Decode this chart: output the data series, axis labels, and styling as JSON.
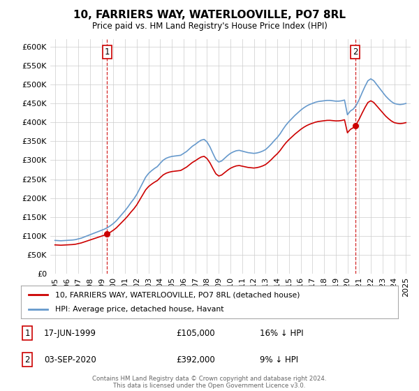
{
  "title": "10, FARRIERS WAY, WATERLOOVILLE, PO7 8RL",
  "subtitle": "Price paid vs. HM Land Registry's House Price Index (HPI)",
  "legend_line1": "10, FARRIERS WAY, WATERLOOVILLE, PO7 8RL (detached house)",
  "legend_line2": "HPI: Average price, detached house, Havant",
  "point1_date": "17-JUN-1999",
  "point1_price": "£105,000",
  "point1_hpi": "16% ↓ HPI",
  "point1_year": 1999.46,
  "point1_value": 105000,
  "point2_date": "03-SEP-2020",
  "point2_price": "£392,000",
  "point2_hpi": "9% ↓ HPI",
  "point2_year": 2020.67,
  "point2_value": 392000,
  "footer": "Contains HM Land Registry data © Crown copyright and database right 2024.\nThis data is licensed under the Open Government Licence v3.0.",
  "red_color": "#cc0000",
  "blue_color": "#6699cc",
  "ylim": [
    0,
    620000
  ],
  "yticks": [
    0,
    50000,
    100000,
    150000,
    200000,
    250000,
    300000,
    350000,
    400000,
    450000,
    500000,
    550000,
    600000
  ],
  "background_color": "#ffffff",
  "grid_color": "#cccccc",
  "years_hpi": [
    1995.0,
    1995.25,
    1995.5,
    1995.75,
    1996.0,
    1996.25,
    1996.5,
    1996.75,
    1997.0,
    1997.25,
    1997.5,
    1997.75,
    1998.0,
    1998.25,
    1998.5,
    1998.75,
    1999.0,
    1999.25,
    1999.5,
    1999.75,
    2000.0,
    2000.25,
    2000.5,
    2000.75,
    2001.0,
    2001.25,
    2001.5,
    2001.75,
    2002.0,
    2002.25,
    2002.5,
    2002.75,
    2003.0,
    2003.25,
    2003.5,
    2003.75,
    2004.0,
    2004.25,
    2004.5,
    2004.75,
    2005.0,
    2005.25,
    2005.5,
    2005.75,
    2006.0,
    2006.25,
    2006.5,
    2006.75,
    2007.0,
    2007.25,
    2007.5,
    2007.75,
    2008.0,
    2008.25,
    2008.5,
    2008.75,
    2009.0,
    2009.25,
    2009.5,
    2009.75,
    2010.0,
    2010.25,
    2010.5,
    2010.75,
    2011.0,
    2011.25,
    2011.5,
    2011.75,
    2012.0,
    2012.25,
    2012.5,
    2012.75,
    2013.0,
    2013.25,
    2013.5,
    2013.75,
    2014.0,
    2014.25,
    2014.5,
    2014.75,
    2015.0,
    2015.25,
    2015.5,
    2015.75,
    2016.0,
    2016.25,
    2016.5,
    2016.75,
    2017.0,
    2017.25,
    2017.5,
    2017.75,
    2018.0,
    2018.25,
    2018.5,
    2018.75,
    2019.0,
    2019.25,
    2019.5,
    2019.75,
    2020.0,
    2020.25,
    2020.5,
    2020.75,
    2021.0,
    2021.25,
    2021.5,
    2021.75,
    2022.0,
    2022.25,
    2022.5,
    2022.75,
    2023.0,
    2023.25,
    2023.5,
    2023.75,
    2024.0,
    2024.25,
    2024.5,
    2024.75,
    2025.0
  ],
  "hpi_values": [
    88000,
    87500,
    87000,
    87500,
    88000,
    88500,
    89000,
    90000,
    92000,
    94000,
    97000,
    100000,
    103000,
    106000,
    109000,
    112000,
    115000,
    118000,
    122000,
    127000,
    133000,
    140000,
    149000,
    158000,
    167000,
    177000,
    188000,
    198000,
    210000,
    225000,
    240000,
    255000,
    265000,
    272000,
    278000,
    283000,
    292000,
    300000,
    305000,
    308000,
    310000,
    311000,
    312000,
    313000,
    318000,
    323000,
    330000,
    337000,
    342000,
    348000,
    353000,
    355000,
    348000,
    335000,
    318000,
    302000,
    295000,
    298000,
    305000,
    312000,
    318000,
    322000,
    325000,
    326000,
    324000,
    322000,
    320000,
    319000,
    318000,
    319000,
    321000,
    324000,
    328000,
    335000,
    343000,
    352000,
    360000,
    370000,
    382000,
    393000,
    402000,
    410000,
    418000,
    425000,
    432000,
    438000,
    443000,
    447000,
    450000,
    453000,
    455000,
    456000,
    457000,
    458000,
    458000,
    457000,
    456000,
    456000,
    457000,
    459000,
    420000,
    430000,
    435000,
    445000,
    460000,
    478000,
    495000,
    510000,
    515000,
    510000,
    500000,
    490000,
    480000,
    470000,
    462000,
    455000,
    450000,
    448000,
    447000,
    448000,
    450000
  ]
}
